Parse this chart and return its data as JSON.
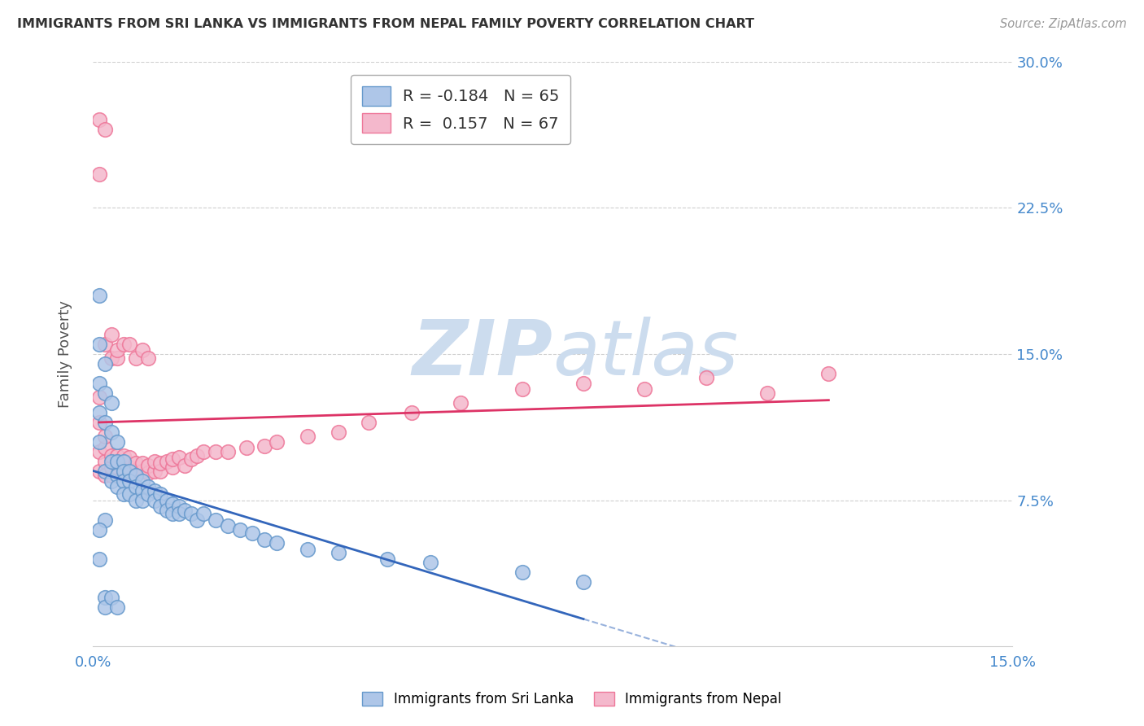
{
  "title": "IMMIGRANTS FROM SRI LANKA VS IMMIGRANTS FROM NEPAL FAMILY POVERTY CORRELATION CHART",
  "source": "Source: ZipAtlas.com",
  "ylabel": "Family Poverty",
  "label_sri_lanka": "Immigrants from Sri Lanka",
  "label_nepal": "Immigrants from Nepal",
  "xlim": [
    0,
    0.15
  ],
  "ylim": [
    0,
    0.3
  ],
  "xticks": [
    0.0,
    0.05,
    0.1,
    0.15
  ],
  "yticks": [
    0.075,
    0.15,
    0.225,
    0.3
  ],
  "ytick_labels": [
    "7.5%",
    "15.0%",
    "22.5%",
    "30.0%"
  ],
  "xtick_labels": [
    "0.0%",
    "",
    "",
    "15.0%"
  ],
  "sri_lanka_R": -0.184,
  "sri_lanka_N": 65,
  "nepal_R": 0.157,
  "nepal_N": 67,
  "sri_lanka_face_color": "#aec6e8",
  "nepal_face_color": "#f4b8cc",
  "sri_lanka_edge_color": "#6699cc",
  "nepal_edge_color": "#ee7799",
  "sri_lanka_line_color": "#3366bb",
  "nepal_line_color": "#dd3366",
  "watermark_color": "#ccdcee",
  "background_color": "#ffffff",
  "grid_color": "#bbbbbb",
  "title_color": "#333333",
  "axis_color": "#4488cc",
  "source_color": "#999999",
  "sri_lanka_x": [
    0.001,
    0.001,
    0.001,
    0.001,
    0.001,
    0.002,
    0.002,
    0.002,
    0.002,
    0.002,
    0.003,
    0.003,
    0.003,
    0.003,
    0.004,
    0.004,
    0.004,
    0.004,
    0.005,
    0.005,
    0.005,
    0.005,
    0.006,
    0.006,
    0.006,
    0.007,
    0.007,
    0.007,
    0.008,
    0.008,
    0.008,
    0.009,
    0.009,
    0.01,
    0.01,
    0.011,
    0.011,
    0.012,
    0.012,
    0.013,
    0.013,
    0.014,
    0.014,
    0.015,
    0.016,
    0.017,
    0.018,
    0.02,
    0.022,
    0.024,
    0.026,
    0.028,
    0.03,
    0.035,
    0.04,
    0.048,
    0.055,
    0.07,
    0.08,
    0.001,
    0.001,
    0.002,
    0.002,
    0.003,
    0.004
  ],
  "sri_lanka_y": [
    0.18,
    0.155,
    0.135,
    0.12,
    0.105,
    0.145,
    0.13,
    0.115,
    0.09,
    0.065,
    0.125,
    0.11,
    0.095,
    0.085,
    0.105,
    0.095,
    0.088,
    0.082,
    0.095,
    0.09,
    0.085,
    0.078,
    0.09,
    0.085,
    0.078,
    0.088,
    0.082,
    0.075,
    0.085,
    0.08,
    0.075,
    0.082,
    0.078,
    0.08,
    0.075,
    0.078,
    0.072,
    0.075,
    0.07,
    0.073,
    0.068,
    0.072,
    0.068,
    0.07,
    0.068,
    0.065,
    0.068,
    0.065,
    0.062,
    0.06,
    0.058,
    0.055,
    0.053,
    0.05,
    0.048,
    0.045,
    0.043,
    0.038,
    0.033,
    0.06,
    0.045,
    0.025,
    0.02,
    0.025,
    0.02
  ],
  "nepal_x": [
    0.001,
    0.001,
    0.001,
    0.001,
    0.002,
    0.002,
    0.002,
    0.002,
    0.003,
    0.003,
    0.003,
    0.004,
    0.004,
    0.004,
    0.005,
    0.005,
    0.005,
    0.006,
    0.006,
    0.006,
    0.007,
    0.007,
    0.008,
    0.008,
    0.009,
    0.009,
    0.01,
    0.01,
    0.011,
    0.011,
    0.012,
    0.013,
    0.013,
    0.014,
    0.015,
    0.016,
    0.017,
    0.018,
    0.02,
    0.022,
    0.025,
    0.028,
    0.03,
    0.035,
    0.04,
    0.045,
    0.052,
    0.06,
    0.07,
    0.08,
    0.09,
    0.1,
    0.11,
    0.12,
    0.002,
    0.003,
    0.003,
    0.004,
    0.004,
    0.005,
    0.001,
    0.001,
    0.002,
    0.006,
    0.007,
    0.008,
    0.009
  ],
  "nepal_y": [
    0.09,
    0.1,
    0.115,
    0.128,
    0.088,
    0.095,
    0.102,
    0.108,
    0.088,
    0.092,
    0.098,
    0.088,
    0.092,
    0.098,
    0.088,
    0.092,
    0.098,
    0.088,
    0.092,
    0.097,
    0.09,
    0.094,
    0.09,
    0.094,
    0.089,
    0.093,
    0.09,
    0.095,
    0.09,
    0.094,
    0.095,
    0.092,
    0.096,
    0.097,
    0.093,
    0.096,
    0.098,
    0.1,
    0.1,
    0.1,
    0.102,
    0.103,
    0.105,
    0.108,
    0.11,
    0.115,
    0.12,
    0.125,
    0.132,
    0.135,
    0.132,
    0.138,
    0.13,
    0.14,
    0.155,
    0.16,
    0.148,
    0.148,
    0.152,
    0.155,
    0.27,
    0.242,
    0.265,
    0.155,
    0.148,
    0.152,
    0.148
  ]
}
